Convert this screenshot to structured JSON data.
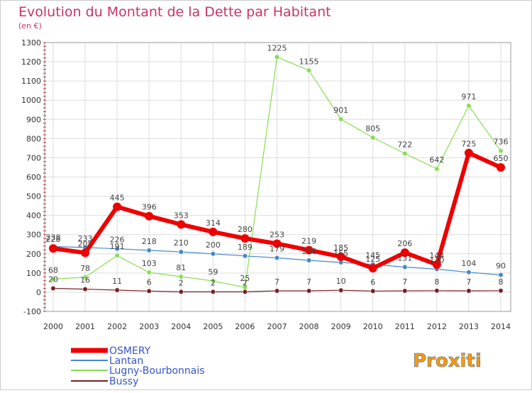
{
  "chart_data": {
    "type": "line",
    "title": "Evolution du Montant de la Dette par Habitant",
    "subtitle": "(en €)",
    "xlabel": "",
    "ylabel": "",
    "categories": [
      "2000",
      "2001",
      "2002",
      "2003",
      "2004",
      "2005",
      "2006",
      "2007",
      "2008",
      "2009",
      "2010",
      "2011",
      "2012",
      "2013",
      "2014"
    ],
    "ylim": [
      -100,
      1300
    ],
    "yticks": [
      -100,
      0,
      100,
      200,
      300,
      400,
      500,
      600,
      700,
      800,
      900,
      1000,
      1100,
      1200,
      1300
    ],
    "grid": true,
    "legend_position": "bottom-left",
    "series": [
      {
        "name": "OSMERY",
        "color": "#ee0000",
        "values": [
          228,
          205,
          445,
          396,
          353,
          314,
          280,
          253,
          219,
          185,
          125,
          206,
          144,
          725,
          650
        ],
        "labels": [
          "228",
          "205",
          "445",
          "396",
          "353",
          "314",
          "280",
          "253",
          "219",
          "185",
          "125",
          "206",
          "144",
          "725",
          "650"
        ]
      },
      {
        "name": "Lantan",
        "color": "#4488cc",
        "values": [
          238,
          233,
          226,
          218,
          210,
          200,
          189,
          179,
          166,
          155,
          145,
          131,
          120,
          104,
          90
        ],
        "labels": [
          "238",
          "233",
          "226",
          "218",
          "210",
          "200",
          "189",
          "179",
          "166",
          "155",
          "145",
          "131",
          "120",
          "104",
          "90"
        ]
      },
      {
        "name": "Lugny-Bourbonnais",
        "color": "#88dd55",
        "values": [
          68,
          78,
          191,
          103,
          81,
          59,
          25,
          1225,
          1155,
          901,
          805,
          722,
          642,
          971,
          736
        ],
        "labels": [
          "68",
          "78",
          "191",
          "103",
          "81",
          "59",
          "25",
          "1225",
          "1155",
          "901",
          "805",
          "722",
          "642",
          "971",
          "736"
        ]
      },
      {
        "name": "Bussy",
        "color": "#772222",
        "values": [
          20,
          16,
          11,
          6,
          2,
          2,
          2,
          7,
          7,
          10,
          6,
          7,
          8,
          7,
          8
        ],
        "labels": [
          "20",
          "16",
          "11",
          "6",
          "2",
          "2",
          "2",
          "7",
          "7",
          "10",
          "6",
          "7",
          "8",
          "7",
          "8"
        ]
      }
    ]
  },
  "logo": {
    "text": "Proxiti"
  }
}
